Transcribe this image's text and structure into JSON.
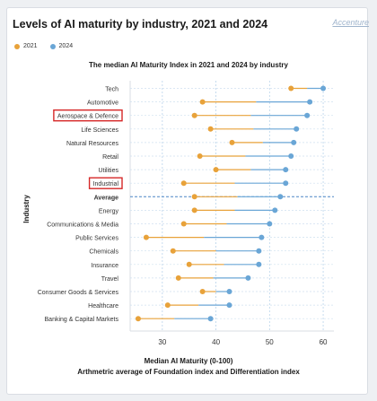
{
  "header": {
    "title": "Levels of AI maturity by industry, 2021 and 2024",
    "brand": "Accenture"
  },
  "legend": [
    {
      "label": "2021",
      "color": "#e8a23a"
    },
    {
      "label": "2024",
      "color": "#6aa6d6"
    }
  ],
  "chart_data": {
    "type": "dumbbell",
    "title": "The median AI Maturity Index in 2021 and 2024 by industry",
    "xlabel": "Median AI Maturity (0-100)",
    "xlabel_sub": "Arthmetric average of Foundation index and Differentiation index",
    "ylabel": "Industry",
    "xlim": [
      24,
      62
    ],
    "xticks": [
      30,
      40,
      50,
      60
    ],
    "grid": true,
    "highlighted": [
      "Aerospace & Defence",
      "Industrial"
    ],
    "reference_row": "Average",
    "series": [
      {
        "name": "2021",
        "color": "#e8a23a"
      },
      {
        "name": "2024",
        "color": "#6aa6d6"
      }
    ],
    "rows": [
      {
        "label": "Tech",
        "v2021": 54,
        "v2024": 60
      },
      {
        "label": "Automotive",
        "v2021": 37.5,
        "v2024": 57.5
      },
      {
        "label": "Aerospace & Defence",
        "v2021": 36,
        "v2024": 57
      },
      {
        "label": "Life Sciences",
        "v2021": 39,
        "v2024": 55
      },
      {
        "label": "Natural Resources",
        "v2021": 43,
        "v2024": 54.5
      },
      {
        "label": "Retail",
        "v2021": 37,
        "v2024": 54
      },
      {
        "label": "Utilities",
        "v2021": 40,
        "v2024": 53
      },
      {
        "label": "Industrial",
        "v2021": 34,
        "v2024": 53
      },
      {
        "label": "Average",
        "v2021": 36,
        "v2024": 52
      },
      {
        "label": "Energy",
        "v2021": 36,
        "v2024": 51
      },
      {
        "label": "Communications & Media",
        "v2021": 34,
        "v2024": 50
      },
      {
        "label": "Public Services",
        "v2021": 27,
        "v2024": 48.5
      },
      {
        "label": "Chemicals",
        "v2021": 32,
        "v2024": 48
      },
      {
        "label": "Insurance",
        "v2021": 35,
        "v2024": 48
      },
      {
        "label": "Travel",
        "v2021": 33,
        "v2024": 46
      },
      {
        "label": "Consumer Goods & Services",
        "v2021": 37.5,
        "v2024": 42.5
      },
      {
        "label": "Healthcare",
        "v2021": 31,
        "v2024": 42.5
      },
      {
        "label": "Banking & Capital Markets",
        "v2021": 25.5,
        "v2024": 39
      }
    ]
  }
}
